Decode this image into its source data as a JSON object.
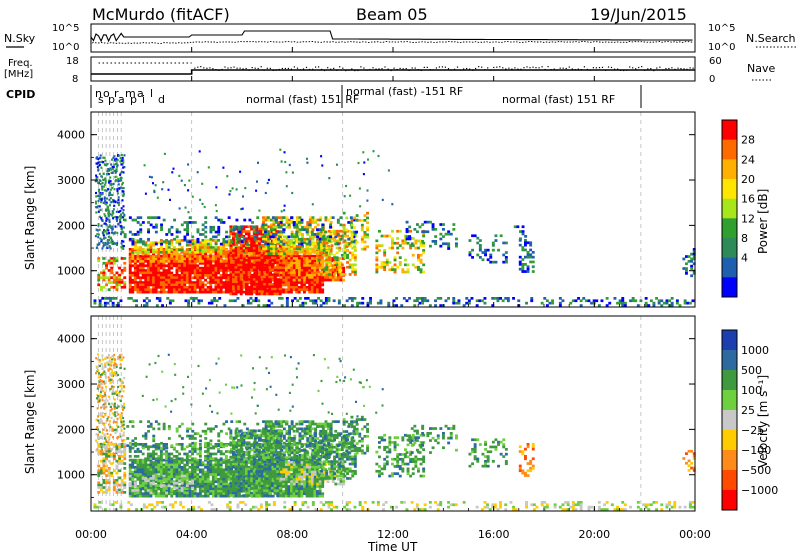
{
  "header": {
    "station": "McMurdo (fitACF)",
    "beam": "Beam 05",
    "date": "19/Jun/2015"
  },
  "param_panels": {
    "nsky_label": "N.Sky",
    "nsearch_label": "N.Search",
    "nsky_ticks": [
      "10^5",
      "10^0"
    ],
    "nsearch_ticks": [
      "10^5",
      "10^0"
    ],
    "freq_label_1": "Freq.",
    "freq_label_2": "[MHz]",
    "freq_ticks": [
      "18",
      "8"
    ],
    "nave_label": "Nave",
    "nave_ticks": [
      "60",
      "0"
    ],
    "cpid_label": "CPID",
    "cpid_segments": [
      {
        "text": "normal (fast) 151 RF"
      },
      {
        "text": "normal (fast) -151 RF"
      },
      {
        "text": "normal (fast) 151 RF"
      }
    ]
  },
  "chart_data": [
    {
      "type": "heatmap",
      "name": "power",
      "ylabel": "Slant Range [km]",
      "ylim": [
        200,
        4500
      ],
      "yticks": [
        "1000",
        "2000",
        "3000",
        "4000"
      ],
      "colorbar_label": "Power [dB]",
      "colorbar_ticks": [
        "28",
        "24",
        "20",
        "16",
        "12",
        "8",
        "4"
      ],
      "colorbar_colors": [
        "#ff0000",
        "#ff6a00",
        "#ffb000",
        "#ffe600",
        "#a6e61a",
        "#2fa02f",
        "#2e8b57",
        "#1f5fb0",
        "#0000ff"
      ]
    },
    {
      "type": "heatmap",
      "name": "velocity",
      "ylabel": "Slant Range [km]",
      "ylim": [
        200,
        4500
      ],
      "yticks": [
        "1000",
        "2000",
        "3000",
        "4000"
      ],
      "colorbar_label": "Velocity [m s⁻¹]",
      "colorbar_ticks": [
        "1000",
        "500",
        "100",
        "25",
        "−25",
        "−100",
        "−500",
        "−1000"
      ],
      "colorbar_colors": [
        "#1c3fb0",
        "#2c6aa0",
        "#3f9a3f",
        "#6ecf3f",
        "#c8c8c8",
        "#ffcc00",
        "#ff8c1a",
        "#ff4a00",
        "#ff0000"
      ]
    }
  ],
  "x_axis": {
    "label": "Time UT",
    "ticks": [
      "00:00",
      "04:00",
      "08:00",
      "12:00",
      "16:00",
      "20:00",
      "00:00"
    ]
  }
}
